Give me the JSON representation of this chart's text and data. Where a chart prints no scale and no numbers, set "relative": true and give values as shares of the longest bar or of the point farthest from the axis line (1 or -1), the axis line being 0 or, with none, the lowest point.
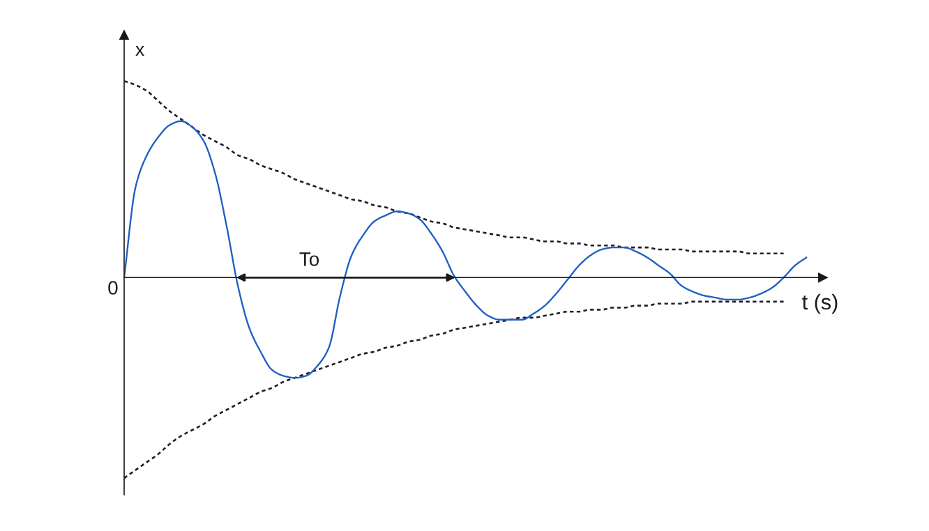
{
  "chart_data": {
    "type": "line",
    "relative": true,
    "xlabel": "t (s)",
    "ylabel": "x",
    "categories": [
      null,
      null,
      null,
      null,
      null,
      null,
      null,
      null,
      null,
      null,
      null,
      null,
      null,
      null,
      null,
      null,
      null,
      null,
      null,
      null,
      null,
      null,
      null,
      null,
      null,
      null,
      null,
      null,
      null,
      null,
      null,
      null,
      null,
      null,
      null,
      null,
      null,
      null,
      null,
      null,
      null,
      null,
      null,
      null,
      null,
      null,
      null,
      null,
      null,
      null,
      null,
      null,
      null,
      null,
      null,
      null,
      null,
      null,
      null,
      null,
      null
    ],
    "series": [
      {
        "color": "#1f1f2b",
        "line_style": "dashed",
        "values": [
          0.98,
          0.96,
          0.93,
          0.88,
          0.83,
          0.79,
          0.75,
          0.71,
          0.68,
          0.65,
          0.61,
          0.59,
          0.56,
          0.54,
          0.52,
          0.49,
          0.47,
          0.45,
          0.43,
          0.41,
          0.39,
          0.38,
          0.36,
          0.35,
          0.33,
          0.32,
          0.3,
          0.28,
          0.27,
          0.25,
          0.24,
          0.23,
          0.22,
          0.21,
          0.2,
          0.2,
          0.19,
          0.18,
          0.18,
          0.17,
          0.17,
          0.16,
          0.16,
          0.16,
          0.15,
          0.15,
          0.15,
          0.14,
          0.14,
          0.14,
          0.13,
          0.13,
          0.13,
          0.13,
          0.13,
          0.12,
          0.12,
          0.12,
          0.12,
          null,
          null
        ]
      },
      {
        "color": "#1f1f2b",
        "line_style": "dashed",
        "values": [
          -1.0,
          -0.96,
          -0.92,
          -0.88,
          -0.83,
          -0.79,
          -0.76,
          -0.73,
          -0.69,
          -0.66,
          -0.63,
          -0.6,
          -0.57,
          -0.55,
          -0.52,
          -0.5,
          -0.48,
          -0.46,
          -0.44,
          -0.42,
          -0.4,
          -0.38,
          -0.37,
          -0.35,
          -0.34,
          -0.32,
          -0.31,
          -0.29,
          -0.28,
          -0.26,
          -0.25,
          -0.24,
          -0.23,
          -0.22,
          -0.21,
          -0.2,
          -0.2,
          -0.19,
          -0.18,
          -0.17,
          -0.17,
          -0.16,
          -0.16,
          -0.15,
          -0.15,
          -0.14,
          -0.14,
          -0.13,
          -0.13,
          -0.13,
          -0.12,
          -0.12,
          -0.12,
          -0.12,
          -0.12,
          -0.12,
          -0.12,
          -0.12,
          -0.12,
          null,
          null
        ]
      },
      {
        "color": "#2060c0",
        "line_style": "solid",
        "values": [
          0,
          0.45,
          0.61,
          0.7,
          0.76,
          0.78,
          0.75,
          0.68,
          0.52,
          0.26,
          -0.04,
          -0.25,
          -0.37,
          -0.46,
          -0.49,
          -0.5,
          -0.49,
          -0.44,
          -0.35,
          -0.09,
          0.11,
          0.21,
          0.28,
          0.31,
          0.33,
          0.32,
          0.29,
          0.22,
          0.13,
          0.01,
          -0.07,
          -0.14,
          -0.19,
          -0.21,
          -0.21,
          -0.21,
          -0.18,
          -0.14,
          -0.08,
          -0.01,
          0.06,
          0.11,
          0.14,
          0.15,
          0.15,
          0.13,
          0.1,
          0.06,
          0.02,
          -0.04,
          -0.07,
          -0.09,
          -0.1,
          -0.11,
          -0.11,
          -0.1,
          -0.08,
          -0.05,
          0.0,
          0.06,
          0.1
        ]
      }
    ],
    "annotations": [
      "0",
      "To"
    ]
  }
}
